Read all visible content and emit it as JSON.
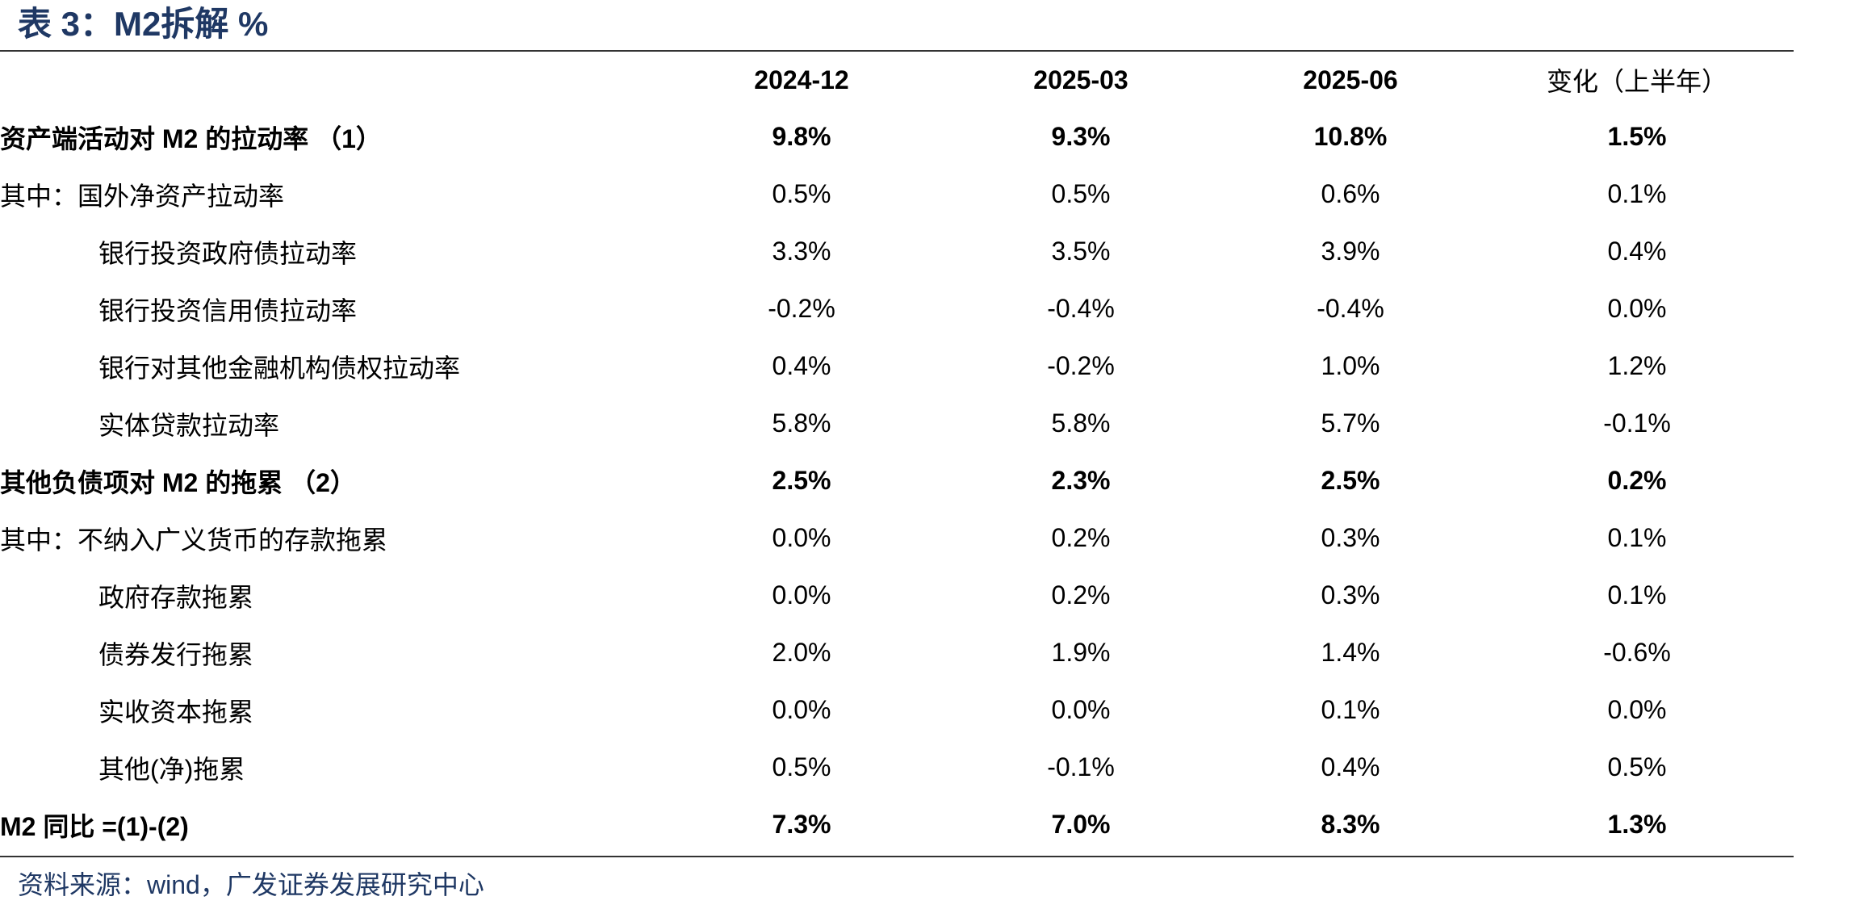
{
  "title": "表 3：M2拆解 %",
  "columns": [
    "",
    "2024-12",
    "2025-03",
    "2025-06",
    "变化（上半年）"
  ],
  "rows": [
    {
      "label": "资产端活动对 M2 的拉动率 （1）",
      "values": [
        "9.8%",
        "9.3%",
        "10.8%",
        "1.5%"
      ],
      "bold": true,
      "indent": false
    },
    {
      "label": "其中：国外净资产拉动率",
      "values": [
        "0.5%",
        "0.5%",
        "0.6%",
        "0.1%"
      ],
      "bold": false,
      "indent": false
    },
    {
      "label": "银行投资政府债拉动率",
      "values": [
        "3.3%",
        "3.5%",
        "3.9%",
        "0.4%"
      ],
      "bold": false,
      "indent": true
    },
    {
      "label": "银行投资信用债拉动率",
      "values": [
        "-0.2%",
        "-0.4%",
        "-0.4%",
        "0.0%"
      ],
      "bold": false,
      "indent": true
    },
    {
      "label": "银行对其他金融机构债权拉动率",
      "values": [
        "0.4%",
        "-0.2%",
        "1.0%",
        "1.2%"
      ],
      "bold": false,
      "indent": true
    },
    {
      "label": "实体贷款拉动率",
      "values": [
        "5.8%",
        "5.8%",
        "5.7%",
        "-0.1%"
      ],
      "bold": false,
      "indent": true
    },
    {
      "label": "其他负债项对 M2 的拖累 （2）",
      "values": [
        "2.5%",
        "2.3%",
        "2.5%",
        "0.2%"
      ],
      "bold": true,
      "indent": false
    },
    {
      "label": "其中：不纳入广义货币的存款拖累",
      "values": [
        "0.0%",
        "0.2%",
        "0.3%",
        "0.1%"
      ],
      "bold": false,
      "indent": false
    },
    {
      "label": "政府存款拖累",
      "values": [
        "0.0%",
        "0.2%",
        "0.3%",
        "0.1%"
      ],
      "bold": false,
      "indent": true
    },
    {
      "label": "债券发行拖累",
      "values": [
        "2.0%",
        "1.9%",
        "1.4%",
        "-0.6%"
      ],
      "bold": false,
      "indent": true
    },
    {
      "label": "实收资本拖累",
      "values": [
        "0.0%",
        "0.0%",
        "0.1%",
        "0.0%"
      ],
      "bold": false,
      "indent": true
    },
    {
      "label": "其他(净)拖累",
      "values": [
        "0.5%",
        "-0.1%",
        "0.4%",
        "0.5%"
      ],
      "bold": false,
      "indent": true
    },
    {
      "label": "M2 同比 =(1)-(2)",
      "values": [
        "7.3%",
        "7.0%",
        "8.3%",
        "1.3%"
      ],
      "bold": true,
      "indent": false
    }
  ],
  "source": "资料来源：wind，广发证券发展研究中心",
  "colors": {
    "title": "#1f3864",
    "rule": "#333333",
    "text": "#000000"
  }
}
